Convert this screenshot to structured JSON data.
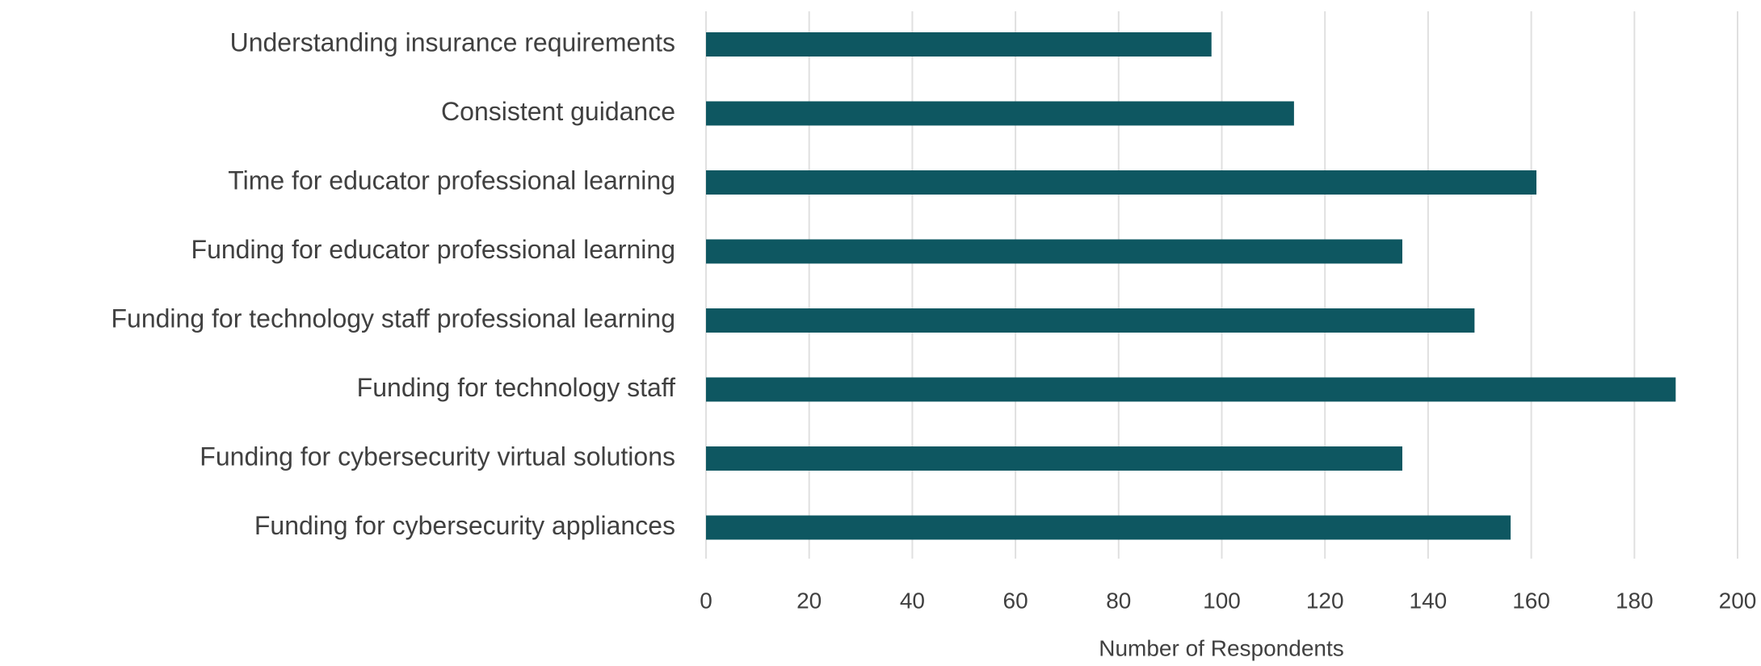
{
  "chart_data": {
    "type": "hbar",
    "categories": [
      "Understanding insurance requirements",
      "Consistent guidance",
      "Time for educator professional learning",
      "Funding for educator professional learning",
      "Funding for technology staff professional learning",
      "Funding for technology staff",
      "Funding for cybersecurity virtual solutions",
      "Funding for cybersecurity appliances"
    ],
    "values": [
      98,
      114,
      161,
      135,
      149,
      188,
      135,
      156
    ],
    "color": "#0e5761",
    "xlim": [
      0,
      200
    ],
    "xticks": [
      0,
      20,
      40,
      60,
      80,
      100,
      120,
      140,
      160,
      180,
      200
    ],
    "x_label": "Number of Respondents",
    "grid": true
  }
}
